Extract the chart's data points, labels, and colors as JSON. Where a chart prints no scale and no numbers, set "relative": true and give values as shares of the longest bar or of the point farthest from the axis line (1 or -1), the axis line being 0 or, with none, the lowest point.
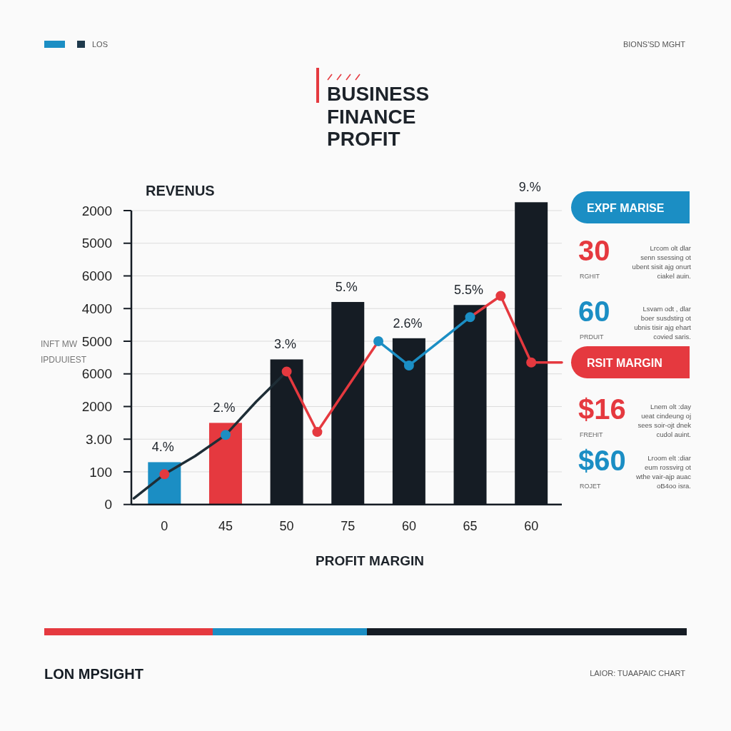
{
  "chart_data": [
    {
      "type": "bar",
      "title": "BUSINESS FINANCE PROFIT",
      "ylabel": "REVENUS",
      "xlabel": "PROFIT MARGIN",
      "annotations": [
        "LOS",
        "BIONS'SD MGHT",
        "INFT MW IPDUUIEST",
        "LON MPSIGHT",
        "LAIOR: TUAAPAIC CHART",
        "4.%",
        "2.%",
        "3.%",
        "5.%",
        "2.6%",
        "5.5%",
        "9.%",
        "2000",
        "5000",
        "6000",
        "4000",
        "5000",
        "6000",
        "2000",
        "3.00",
        "100",
        "0"
      ],
      "categories": [
        null,
        "0",
        null,
        "45",
        null,
        "50",
        null,
        "75",
        null,
        "60",
        null,
        "65",
        null,
        "60",
        null
      ],
      "relative": true,
      "grid": "y",
      "series": [
        {
          "type": "bar",
          "colors": [
            null,
            "#1b8ec4",
            null,
            "#e5393f",
            null,
            "#151c24",
            null,
            "#151c24",
            null,
            "#151c24",
            null,
            "#151c24",
            null,
            "#151c24",
            null
          ],
          "values": [
            null,
            0.14,
            null,
            0.27,
            null,
            0.48,
            null,
            0.67,
            null,
            0.55,
            null,
            0.66,
            null,
            1,
            null
          ]
        },
        {
          "type": "line",
          "color": "#1e2d36",
          "values": [
            0.02,
            0.1,
            0.16,
            0.23,
            0.34,
            0.44,
            null,
            null,
            null,
            null,
            null,
            null,
            null,
            null,
            null
          ]
        },
        {
          "type": "line",
          "color": "#e5393f",
          "values": [
            null,
            null,
            null,
            null,
            null,
            0.44,
            0.24,
            0.39,
            0.54,
            null,
            null,
            null,
            null,
            null,
            null
          ]
        },
        {
          "type": "line",
          "color": "#1b8ec4",
          "values": [
            null,
            null,
            null,
            null,
            null,
            null,
            null,
            null,
            0.54,
            0.46,
            0.54,
            0.62,
            null,
            null,
            null
          ]
        },
        {
          "type": "line",
          "color": "#e5393f",
          "values": [
            null,
            null,
            null,
            null,
            null,
            null,
            null,
            null,
            null,
            null,
            null,
            0.62,
            0.69,
            0.47,
            0.47
          ]
        },
        {
          "type": "scatter",
          "marker": "circle",
          "color": "#e5393f",
          "values": [
            null,
            0.1,
            null,
            null,
            null,
            0.44,
            0.24,
            null,
            null,
            null,
            null,
            null,
            0.69,
            0.47,
            null
          ]
        },
        {
          "type": "scatter",
          "marker": "circle",
          "color": "#1b8ec4",
          "values": [
            null,
            null,
            null,
            0.23,
            null,
            null,
            null,
            null,
            0.54,
            0.46,
            null,
            0.62,
            null,
            null,
            null
          ]
        }
      ]
    },
    {
      "type": "other",
      "annotations": [
        "EXPF MARISE",
        "30",
        "Lrcom olt dlar senn ssessing ot ubent sisit ajg onurt ciakel auin.",
        "RGHIT",
        "60",
        "Lsvam odt , dlar boer susdstirg ot ubnis tisir ajg ehart covied saris.",
        "PRDUIT",
        "RSIT MARGIN",
        "$16",
        "Lnem olt :day ueat cindeung oj sees soir-ojt dnek cudol auint.",
        "FREHIT",
        "$60",
        "Lroom elt :diar eum rossvirg ot wthe vair-ajp auac oB4oo isra.",
        "ROJET"
      ],
      "colors": [
        "#1b8ec4",
        "#e5393f",
        "#1b8ec4",
        "#e5393f",
        "#e5393f",
        "#1b8ec4"
      ]
    }
  ]
}
